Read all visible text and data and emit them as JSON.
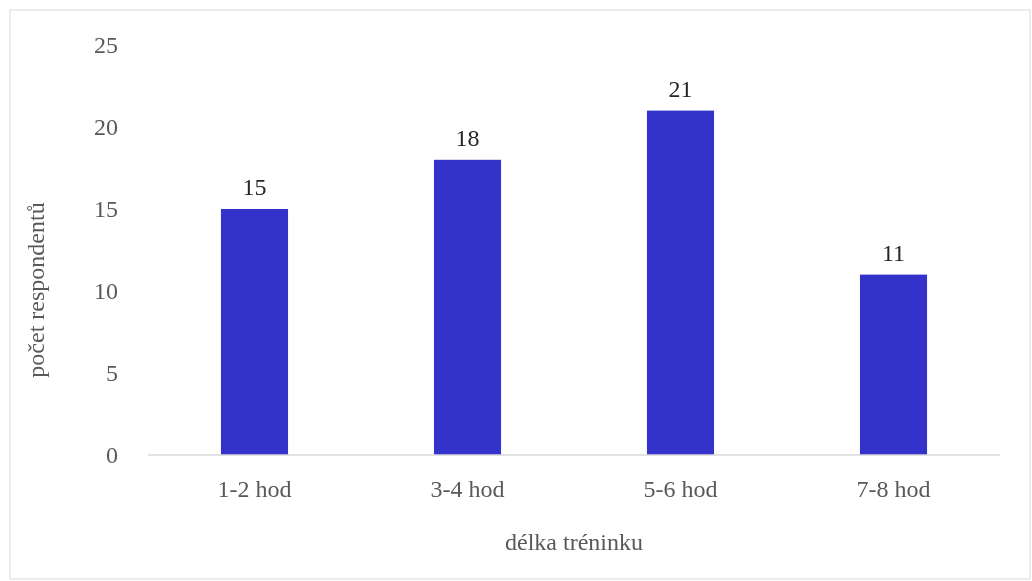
{
  "chart_data": {
    "type": "bar",
    "xlabel": "délka tréninku",
    "ylabel": "počet respondentů",
    "categories": [
      "1-2 hod",
      "3-4 hod",
      "5-6 hod",
      "7-8 hod"
    ],
    "values": [
      15,
      18,
      21,
      11
    ],
    "color": "#3333cc",
    "ylim": [
      0,
      25
    ],
    "yticks": [
      0,
      5,
      10,
      15,
      20,
      25
    ],
    "grid": false,
    "data_labels": true
  }
}
